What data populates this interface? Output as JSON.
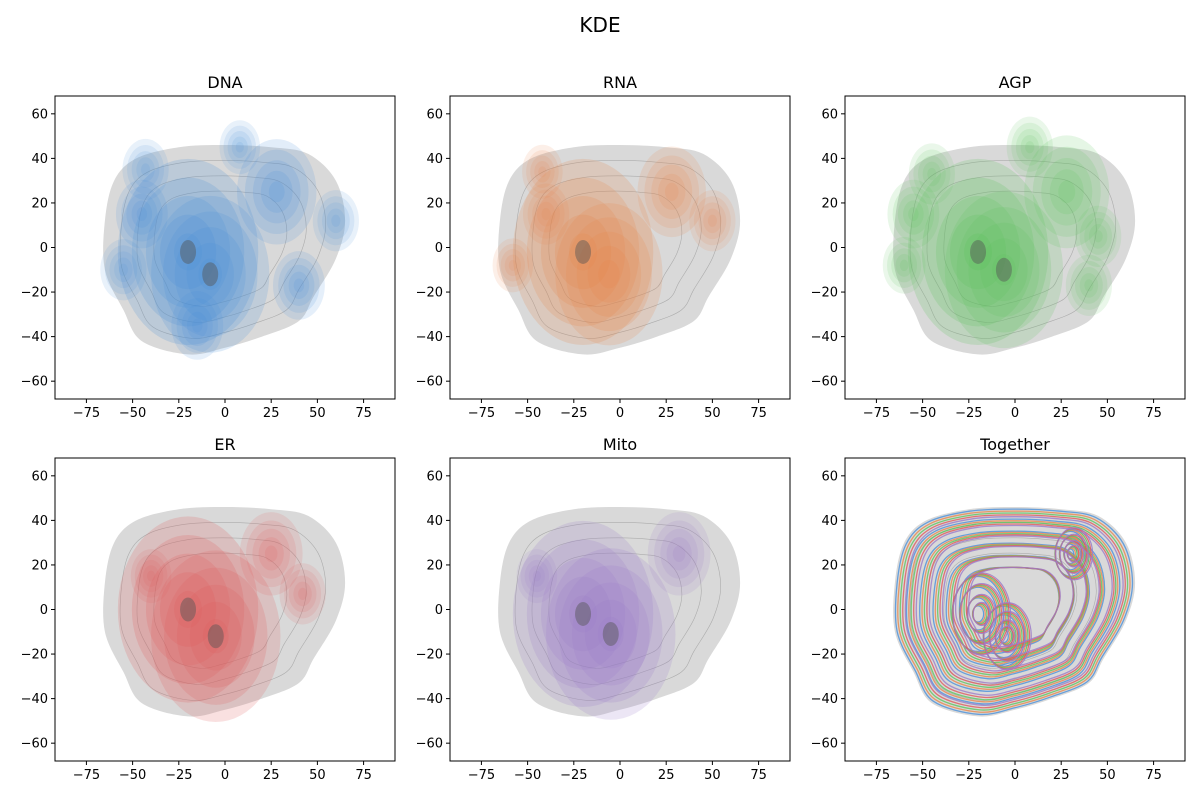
{
  "figure": {
    "title": "KDE"
  },
  "chart_data": [
    {
      "type": "kde",
      "title": "DNA",
      "color": "#4a90d9",
      "xlim": [
        -92,
        92
      ],
      "ylim": [
        -68,
        68
      ],
      "xticks": [
        -75,
        -50,
        -25,
        0,
        25,
        50,
        75
      ],
      "yticks": [
        -60,
        -40,
        -20,
        0,
        20,
        40,
        60
      ],
      "hotspots": [
        {
          "x": -20,
          "y": -2,
          "w": 1.0
        },
        {
          "x": -8,
          "y": -12,
          "w": 0.8
        },
        {
          "x": 28,
          "y": 25,
          "w": 0.45
        },
        {
          "x": 40,
          "y": -17,
          "w": 0.2
        },
        {
          "x": -43,
          "y": 35,
          "w": 0.15
        },
        {
          "x": 60,
          "y": 12,
          "w": 0.15
        },
        {
          "x": 8,
          "y": 45,
          "w": 0.1
        },
        {
          "x": -45,
          "y": 15,
          "w": 0.2
        },
        {
          "x": -55,
          "y": -10,
          "w": 0.15
        },
        {
          "x": -15,
          "y": -35,
          "w": 0.2
        }
      ]
    },
    {
      "type": "kde",
      "title": "RNA",
      "color": "#e8874a",
      "xlim": [
        -92,
        92
      ],
      "ylim": [
        -68,
        68
      ],
      "xticks": [
        -75,
        -50,
        -25,
        0,
        25,
        50,
        75
      ],
      "yticks": [
        -60,
        -40,
        -20,
        0,
        20,
        40,
        60
      ],
      "hotspots": [
        {
          "x": -20,
          "y": -2,
          "w": 1.0
        },
        {
          "x": -6,
          "y": -12,
          "w": 0.7
        },
        {
          "x": 28,
          "y": 25,
          "w": 0.35
        },
        {
          "x": 50,
          "y": 12,
          "w": 0.15
        },
        {
          "x": -58,
          "y": -8,
          "w": 0.1
        },
        {
          "x": -42,
          "y": 34,
          "w": 0.1
        },
        {
          "x": -40,
          "y": 15,
          "w": 0.15
        }
      ]
    },
    {
      "type": "kde",
      "title": "AGP",
      "color": "#5cc45c",
      "xlim": [
        -92,
        92
      ],
      "ylim": [
        -68,
        68
      ],
      "xticks": [
        -75,
        -50,
        -25,
        0,
        25,
        50,
        75
      ],
      "yticks": [
        -60,
        -40,
        -20,
        0,
        20,
        40,
        60
      ],
      "hotspots": [
        {
          "x": -20,
          "y": -2,
          "w": 1.0
        },
        {
          "x": -6,
          "y": -10,
          "w": 0.8
        },
        {
          "x": 28,
          "y": 25,
          "w": 0.5
        },
        {
          "x": 8,
          "y": 45,
          "w": 0.15
        },
        {
          "x": -45,
          "y": 33,
          "w": 0.15
        },
        {
          "x": -60,
          "y": -8,
          "w": 0.12
        },
        {
          "x": 45,
          "y": 5,
          "w": 0.15
        },
        {
          "x": 40,
          "y": -17,
          "w": 0.15
        },
        {
          "x": -55,
          "y": 15,
          "w": 0.2
        }
      ]
    },
    {
      "type": "kde",
      "title": "ER",
      "color": "#e05a5a",
      "xlim": [
        -92,
        92
      ],
      "ylim": [
        -68,
        68
      ],
      "xticks": [
        -75,
        -50,
        -25,
        0,
        25,
        50,
        75
      ],
      "yticks": [
        -60,
        -40,
        -20,
        0,
        20,
        40,
        60
      ],
      "hotspots": [
        {
          "x": -20,
          "y": 0,
          "w": 1.0
        },
        {
          "x": -5,
          "y": -12,
          "w": 0.9
        },
        {
          "x": 25,
          "y": 25,
          "w": 0.3
        },
        {
          "x": 42,
          "y": 7,
          "w": 0.15
        },
        {
          "x": -40,
          "y": 15,
          "w": 0.1
        }
      ]
    },
    {
      "type": "kde",
      "title": "Mito",
      "color": "#9b7bc8",
      "xlim": [
        -92,
        92
      ],
      "ylim": [
        -68,
        68
      ],
      "xticks": [
        -75,
        -50,
        -25,
        0,
        25,
        50,
        75
      ],
      "yticks": [
        -60,
        -40,
        -20,
        0,
        20,
        40,
        60
      ],
      "hotspots": [
        {
          "x": -20,
          "y": -2,
          "w": 1.0
        },
        {
          "x": -5,
          "y": -11,
          "w": 0.9
        },
        {
          "x": 32,
          "y": 25,
          "w": 0.3
        },
        {
          "x": -45,
          "y": 15,
          "w": 0.1
        }
      ]
    },
    {
      "type": "kde-contour",
      "title": "Together",
      "xlim": [
        -92,
        92
      ],
      "ylim": [
        -68,
        68
      ],
      "xticks": [
        -75,
        -50,
        -25,
        0,
        25,
        50,
        75
      ],
      "yticks": [
        -60,
        -40,
        -20,
        0,
        20,
        40,
        60
      ],
      "series": [
        {
          "color": "#4a90d9"
        },
        {
          "color": "#e8874a"
        },
        {
          "color": "#5cc45c"
        },
        {
          "color": "#e05a5a"
        },
        {
          "color": "#9b7bc8"
        }
      ]
    }
  ]
}
